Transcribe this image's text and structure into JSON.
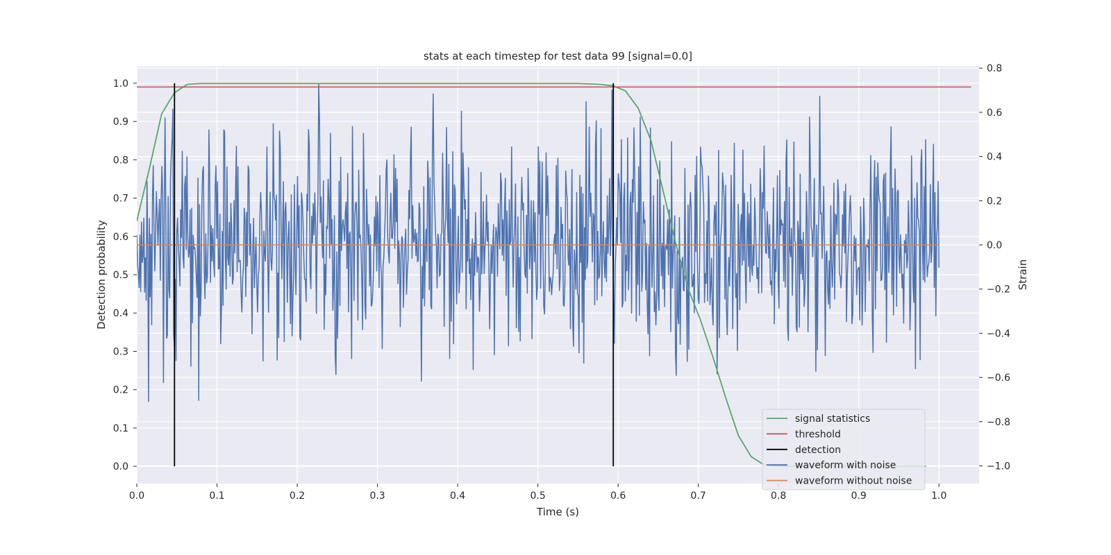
{
  "chart_data": {
    "type": "line",
    "title": "stats at each timestep for test data 99 [signal=0.0]",
    "xlabel": "Time (s)",
    "ylabel_left": "Detection probability",
    "ylabel_right": "Strain",
    "xlim": [
      0.0,
      1.05
    ],
    "ylim_left": [
      -0.045,
      1.045
    ],
    "ylim_right": [
      -1.08,
      0.81
    ],
    "x_ticks": [
      "0.0",
      "0.1",
      "0.2",
      "0.3",
      "0.4",
      "0.5",
      "0.6",
      "0.7",
      "0.8",
      "0.9",
      "1.0"
    ],
    "x_tick_values": [
      0.0,
      0.1,
      0.2,
      0.3,
      0.4,
      0.5,
      0.6,
      0.7,
      0.8,
      0.9,
      1.0
    ],
    "y_ticks_left": [
      "0.0",
      "0.1",
      "0.2",
      "0.3",
      "0.4",
      "0.5",
      "0.6",
      "0.7",
      "0.8",
      "0.9",
      "1.0"
    ],
    "y_tick_values_left": [
      0.0,
      0.1,
      0.2,
      0.3,
      0.4,
      0.5,
      0.6,
      0.7,
      0.8,
      0.9,
      1.0
    ],
    "y_ticks_right": [
      "−1.0",
      "−0.8",
      "−0.6",
      "−0.4",
      "−0.2",
      "0.0",
      "0.2",
      "0.4",
      "0.6",
      "0.8"
    ],
    "y_tick_values_right": [
      -1.0,
      -0.8,
      -0.6,
      -0.4,
      -0.2,
      0.0,
      0.2,
      0.4,
      0.6,
      0.8
    ],
    "grid": true,
    "legend_position": "lower-right",
    "legend": [
      "signal statistics",
      "threshold",
      "detection",
      "waveform with noise",
      "waveform without noise"
    ],
    "series": [
      {
        "name": "signal statistics",
        "axis": "left",
        "color": "#55a868",
        "x": [
          0.0,
          0.016,
          0.031,
          0.047,
          0.063,
          0.078,
          0.094,
          0.2,
          0.4,
          0.5,
          0.55,
          0.578,
          0.594,
          0.609,
          0.625,
          0.641,
          0.656,
          0.672,
          0.688,
          0.703,
          0.719,
          0.734,
          0.75,
          0.766,
          0.781,
          0.797,
          0.813,
          0.85,
          0.9,
          0.95,
          0.984
        ],
        "y": [
          0.64,
          0.78,
          0.92,
          0.975,
          0.997,
          0.999,
          0.999,
          0.999,
          0.999,
          0.999,
          0.999,
          0.997,
          0.993,
          0.98,
          0.935,
          0.85,
          0.72,
          0.58,
          0.46,
          0.38,
          0.28,
          0.18,
          0.08,
          0.025,
          0.005,
          0.001,
          0.0,
          0.0,
          0.0,
          0.0,
          0.0
        ]
      },
      {
        "name": "threshold",
        "axis": "left",
        "color": "#c44e52",
        "x": [
          0.0,
          1.04
        ],
        "y": [
          0.99,
          0.99
        ]
      },
      {
        "name": "detection",
        "axis": "left",
        "color": "#000000",
        "x_values": [
          0.047,
          0.594
        ],
        "y_range": [
          0.0,
          1.0
        ]
      },
      {
        "name": "waveform with noise",
        "axis": "right",
        "color": "#4c72b0",
        "x_range": [
          0.0,
          1.0
        ],
        "n_points": 1024,
        "std": 0.25,
        "min": -1.0,
        "max": 0.8
      },
      {
        "name": "waveform without noise",
        "axis": "right",
        "color": "#dd8452",
        "x": [
          0.0,
          1.0
        ],
        "y": [
          0.0,
          0.0
        ]
      }
    ]
  }
}
